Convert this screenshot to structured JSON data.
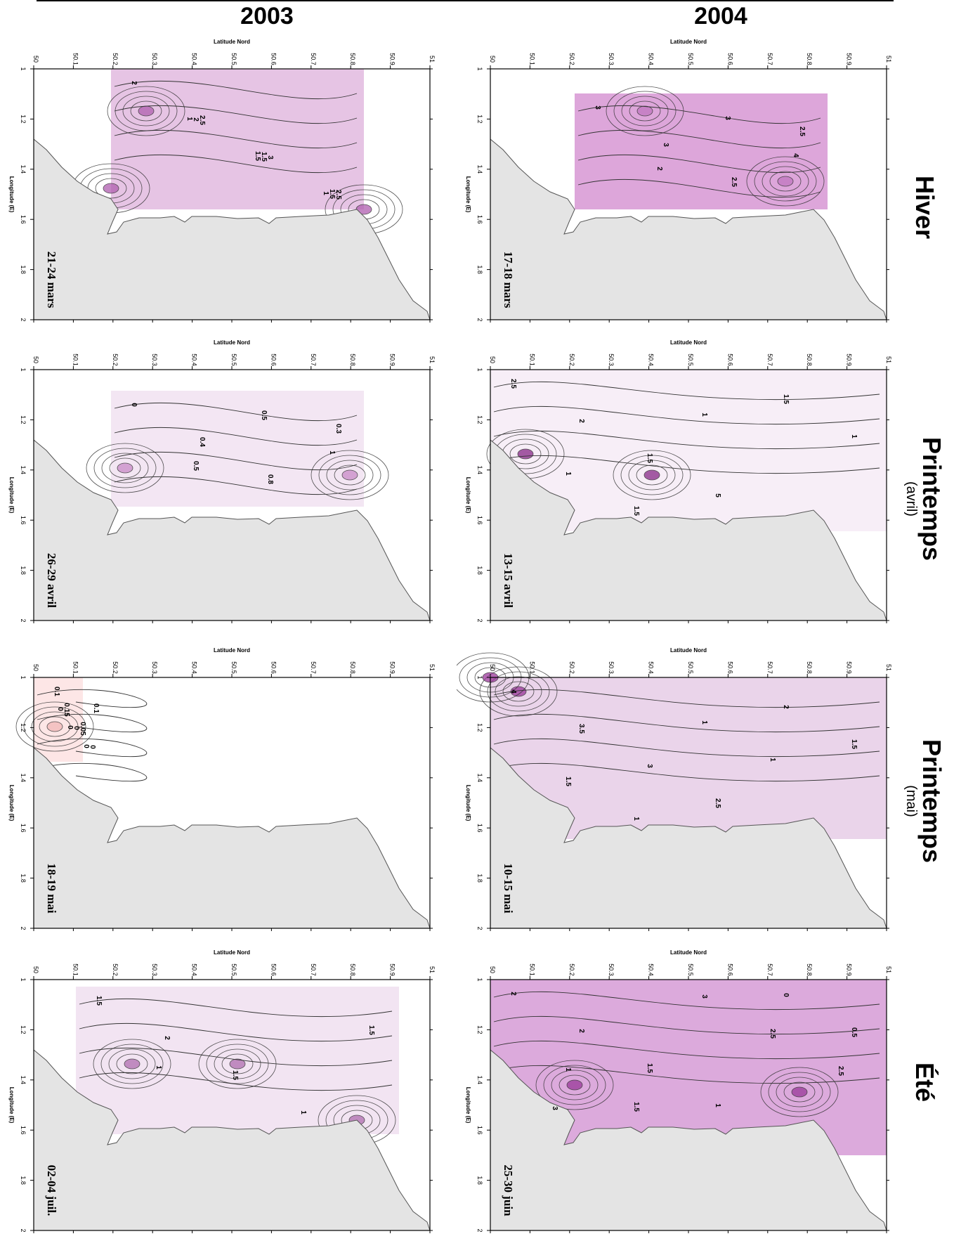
{
  "years": [
    "2003",
    "2004"
  ],
  "seasons": [
    {
      "label": "Hiver",
      "sub": ""
    },
    {
      "label": "Printemps",
      "sub": "(avril)"
    },
    {
      "label": "Printemps",
      "sub": "(mai)"
    },
    {
      "label": "Été",
      "sub": ""
    }
  ],
  "axes": {
    "top_title": "Latitude Nord",
    "side_title": "Longitude (E)",
    "lat_ticks": [
      "50",
      "50.1",
      "50.2",
      "50.3",
      "50.4",
      "50.5",
      "50.6",
      "50.7",
      "50.8",
      "50.9",
      "51"
    ],
    "lon_ticks": [
      "1",
      "1.2",
      "1.4",
      "1.6",
      "1.8",
      "2"
    ]
  },
  "panels": [
    {
      "year": "2003",
      "season": "Hiver",
      "date": "21-24 mars",
      "contour_labels": [
        "2",
        "2.5",
        "3",
        "2.5",
        "2",
        "1.5",
        "1.5",
        "1",
        "1.5",
        "1"
      ]
    },
    {
      "year": "2004",
      "season": "Hiver",
      "date": "17-18 mars",
      "contour_labels": [
        "3",
        "3",
        "2.5",
        "2.5",
        "2",
        "3",
        "4"
      ]
    },
    {
      "year": "2003",
      "season": "Printemps (avril)",
      "date": "26-29 avril",
      "contour_labels": [
        "0",
        "0.4",
        "0.8",
        "0.3",
        "0.5",
        "0.5",
        "1"
      ]
    },
    {
      "year": "2004",
      "season": "Printemps (avril)",
      "date": "13-15 avril",
      "contour_labels": [
        "2.5",
        "2",
        "1.5",
        "5",
        "1.5",
        "1",
        "1",
        "1.5",
        "1"
      ]
    },
    {
      "year": "2003",
      "season": "Printemps (mai)",
      "date": "18-19 mai",
      "contour_labels": [
        "0.1",
        "0.05",
        "0.15",
        "0",
        "0",
        "0",
        "0",
        "0",
        "0.1"
      ]
    },
    {
      "year": "2004",
      "season": "Printemps (mai)",
      "date": "10-15 mai",
      "contour_labels": [
        "4",
        "3.5",
        "3",
        "2.5",
        "2",
        "1.5",
        "1.5",
        "1",
        "1",
        "1"
      ]
    },
    {
      "year": "2003",
      "season": "Été",
      "date": "02-04 juil.",
      "contour_labels": [
        "1.5",
        "2",
        "1.5",
        "1",
        "1.5",
        "1"
      ]
    },
    {
      "year": "2004",
      "season": "Été",
      "date": "25-30 juin",
      "contour_labels": [
        "2",
        "2",
        "1.5",
        "1",
        "0",
        "0.5",
        "1",
        "1.5",
        "3",
        "2.5",
        "2.5",
        "3"
      ]
    }
  ]
}
